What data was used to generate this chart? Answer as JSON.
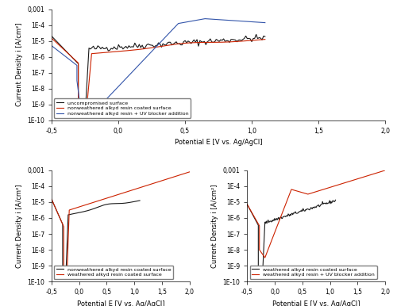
{
  "xlim": [
    -0.5,
    2.0
  ],
  "ylim_log": [
    1e-10,
    0.001
  ],
  "xlabel": "Potential E [V vs. Ag/AgCl]",
  "ylabel": "Current Density i [A/cm²]",
  "yticks": [
    1e-10,
    1e-09,
    1e-08,
    1e-07,
    1e-06,
    1e-05,
    0.0001,
    0.001
  ],
  "ytick_labels": [
    "1E-10",
    "1E-9",
    "1E-8",
    "1E-7",
    "1E-6",
    "1E-5",
    "1E-4",
    "0,001"
  ],
  "xticks": [
    -0.5,
    0.0,
    0.5,
    1.0,
    1.5,
    2.0
  ],
  "xtick_labels": [
    "-0,5",
    "0,0",
    "0,5",
    "1,0",
    "1,5",
    "2,0"
  ],
  "colors": {
    "black": "#1a1a1a",
    "red": "#cc2200",
    "blue": "#3355aa"
  },
  "top_legend": [
    "uncompromised surface",
    "nonweathered alkyd resin coated surface",
    "nonweathered alkyd resin + UV blocker addition"
  ],
  "bot_left_legend": [
    "nonweathered alkyd resin coated surface",
    "weathered alkyd resin coated surface"
  ],
  "bot_right_legend": [
    "weathered alkyd resin coated surface",
    "weathered alkyd resin + UV blocker addition"
  ]
}
